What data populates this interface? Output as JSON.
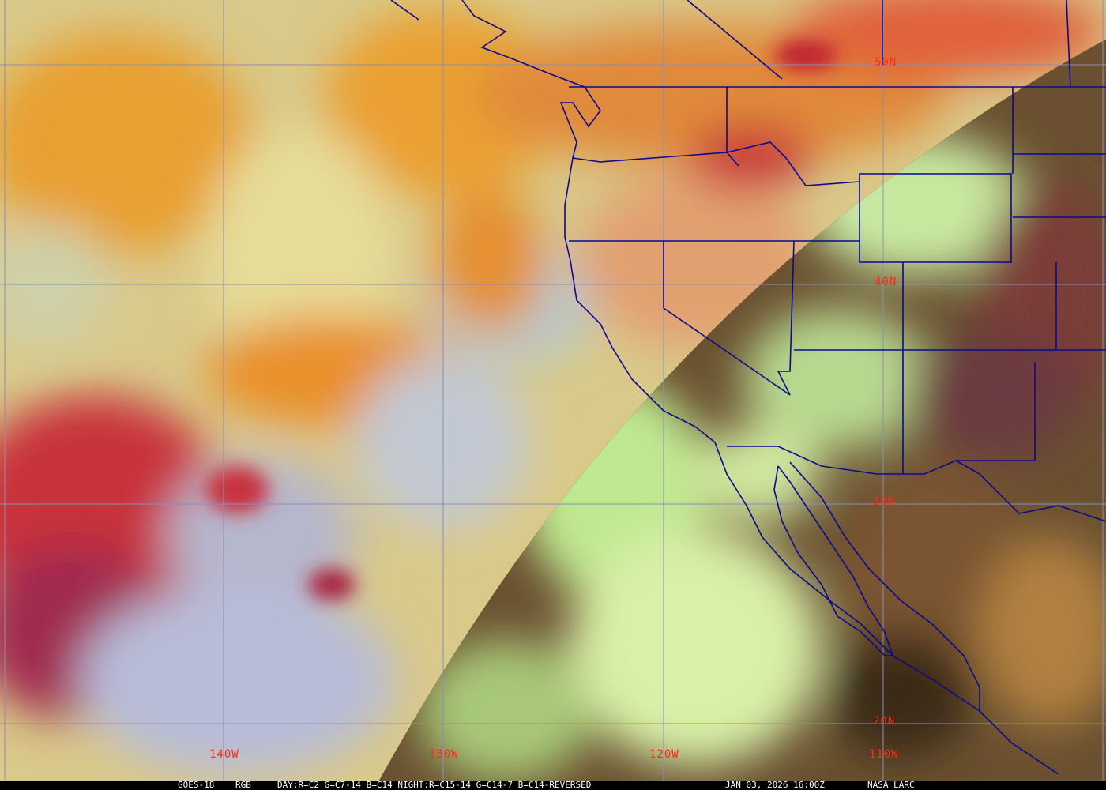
{
  "image": {
    "satellite": "GOES-18",
    "product": "RGB",
    "recipe": "DAY:R=C2 G=C7-14 B=C14 NIGHT:R=C15-14 G=C14-7 B=C14-REVERSED",
    "timestamp": "JAN 03, 2026 16:00Z",
    "credit": "NASA LARC"
  },
  "latitude_labels": [
    "50N",
    "40N",
    "30N",
    "20N"
  ],
  "longitude_labels": [
    "140W",
    "130W",
    "120W",
    "110W"
  ],
  "colors": {
    "label": "#ff2a1a",
    "grid": "#8a8fb8",
    "borders": "#0a0a8c",
    "caption_bg": "#000000",
    "caption_text": "#ffffff"
  }
}
